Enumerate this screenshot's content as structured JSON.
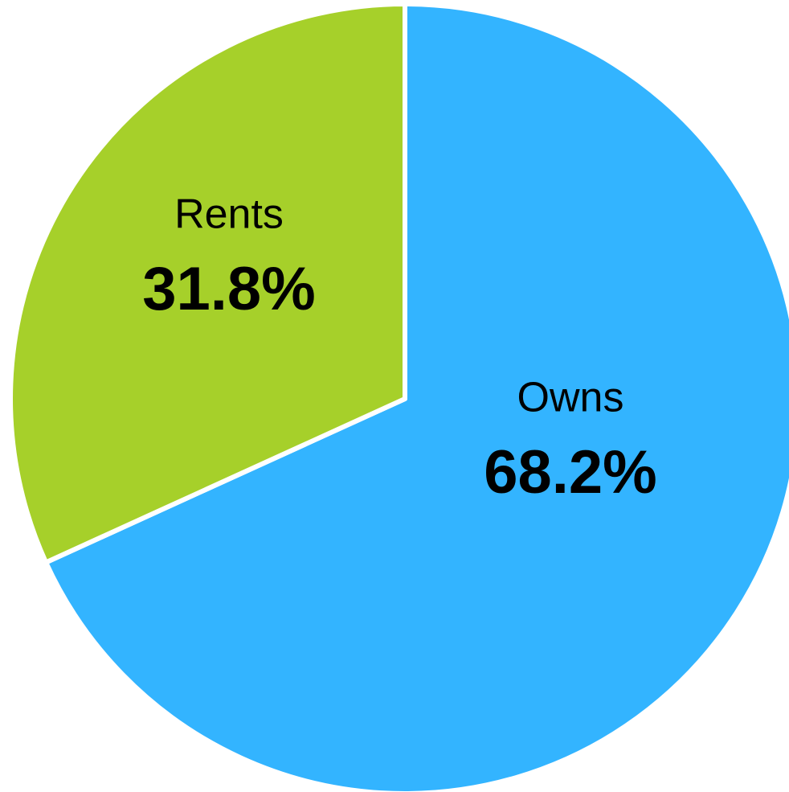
{
  "chart_data": {
    "type": "pie",
    "categories": [
      "Owns",
      "Rents"
    ],
    "values": [
      68.2,
      31.8
    ],
    "value_labels": [
      "68.2%",
      "31.8%"
    ],
    "colors": [
      "#33b4ff",
      "#a6d02a"
    ]
  }
}
